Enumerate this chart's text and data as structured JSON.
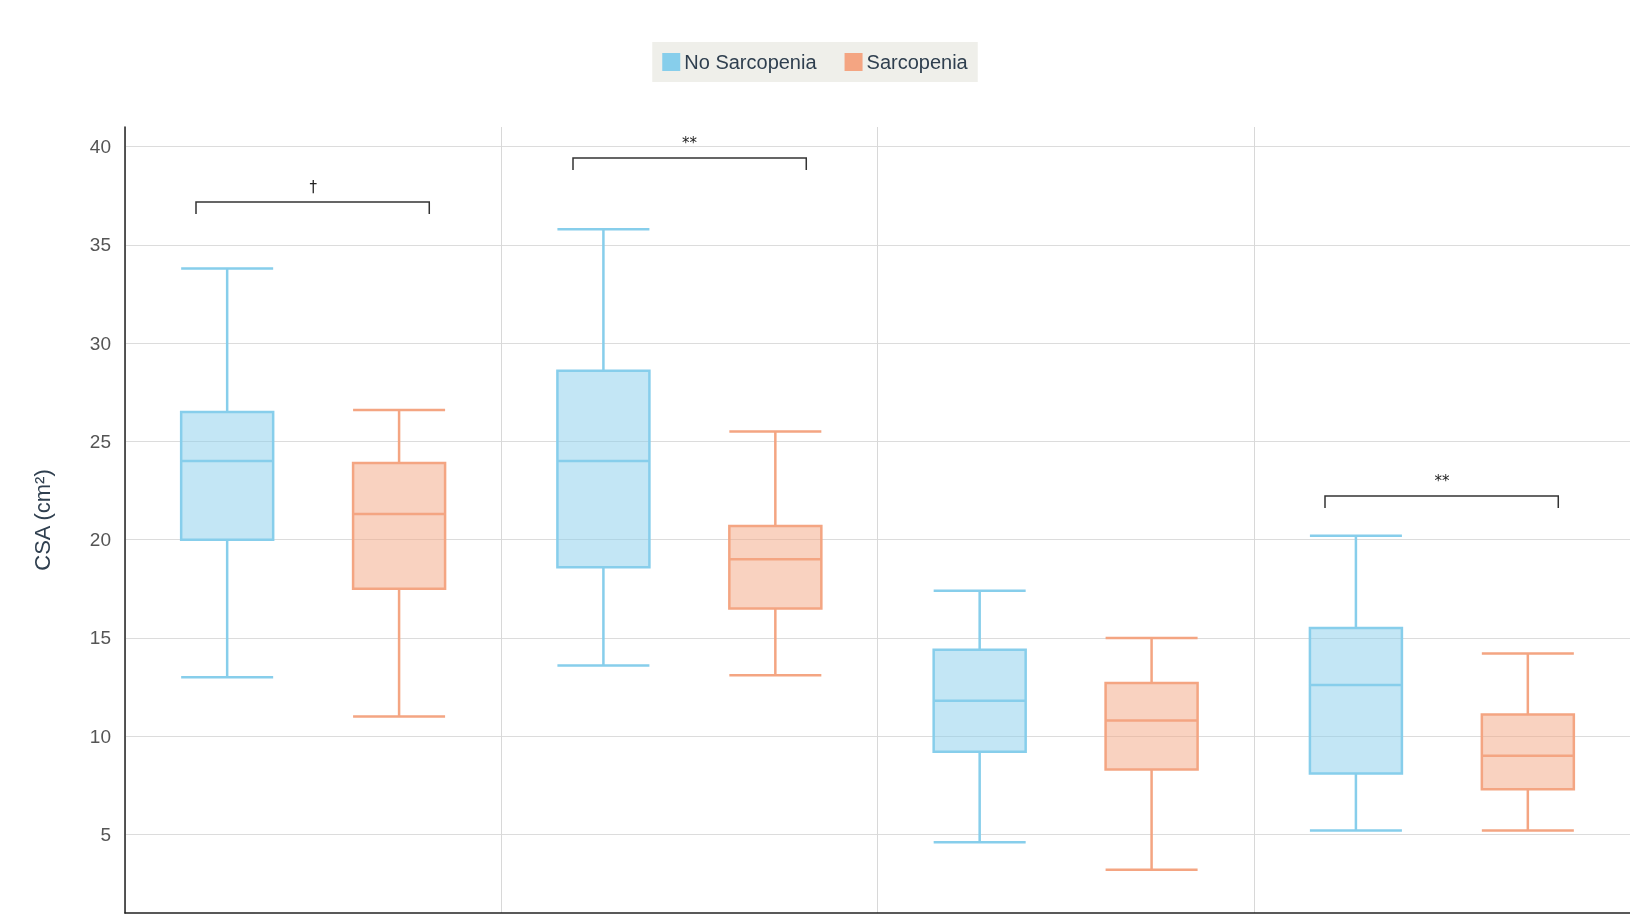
{
  "chart_data": {
    "type": "box",
    "ylabel": "CSA (cm²)",
    "categories": [
      null,
      null,
      null,
      null
    ],
    "series": [
      {
        "name": "No Sarcopenia",
        "color": "#87ceeb",
        "boxes": [
          {
            "low": 13.0,
            "q1": 20.0,
            "median": 24.0,
            "q3": 26.5,
            "high": 33.8
          },
          {
            "low": 13.6,
            "q1": 18.6,
            "median": 24.0,
            "q3": 28.6,
            "high": 35.8
          },
          {
            "low": 4.6,
            "q1": 9.2,
            "median": 11.8,
            "q3": 14.4,
            "high": 17.4
          },
          {
            "low": 5.2,
            "q1": 8.1,
            "median": 12.6,
            "q3": 15.5,
            "high": 20.2
          }
        ]
      },
      {
        "name": "Sarcopenia",
        "color": "#f4a582",
        "boxes": [
          {
            "low": 11.0,
            "q1": 17.5,
            "median": 21.3,
            "q3": 23.9,
            "high": 26.6
          },
          {
            "low": 13.1,
            "q1": 16.5,
            "median": 19.0,
            "q3": 20.7,
            "high": 25.5
          },
          {
            "low": 3.2,
            "q1": 8.3,
            "median": 10.8,
            "q3": 12.7,
            "high": 15.0
          },
          {
            "low": 5.2,
            "q1": 7.3,
            "median": 9.0,
            "q3": 11.1,
            "high": 14.2
          }
        ]
      }
    ],
    "annotations": [
      "†",
      "**",
      "**"
    ],
    "ylim": [
      1,
      41
    ],
    "yticks": [
      5,
      10,
      15,
      20,
      25,
      30,
      35,
      40
    ],
    "grid": true,
    "legend": "top"
  }
}
